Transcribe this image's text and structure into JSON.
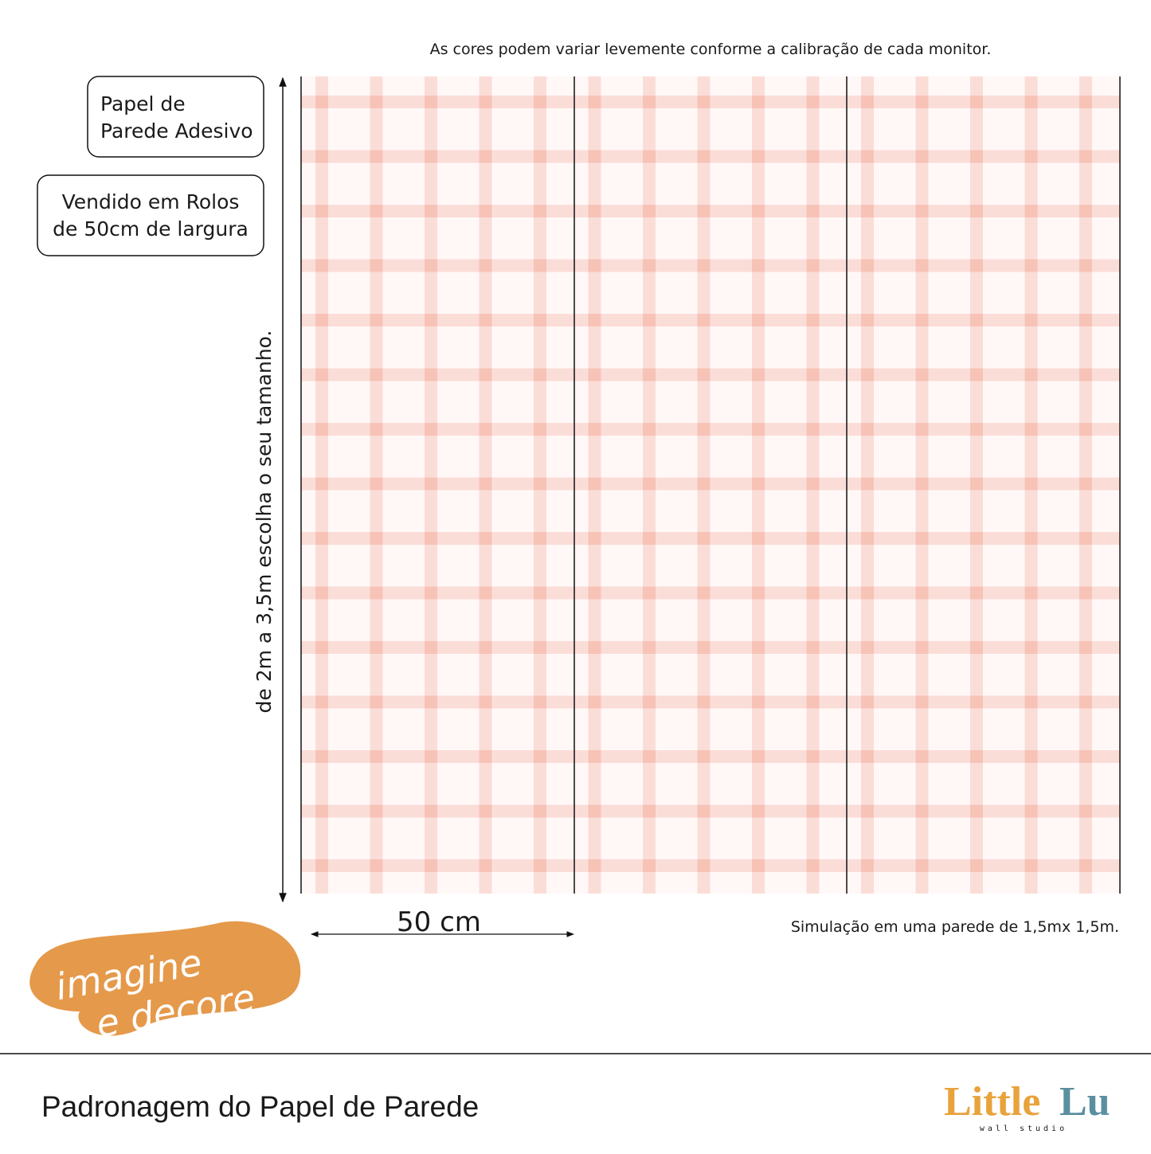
{
  "note": "As cores podem variar levemente conforme a calibração de cada monitor.",
  "badges": [
    {
      "lines": [
        "Papel de",
        "Parede Adesivo"
      ]
    },
    {
      "lines": [
        "Vendido em Rolos",
        "de 50cm de largura"
      ]
    }
  ],
  "height_label": "de 2m a 3,5m escolha o seu tamanho.",
  "width_label": "50 cm",
  "simulation": "Simulação em uma parede de 1,5mx 1,5m.",
  "brand_stamp": {
    "lines": [
      "imagine",
      "e decore"
    ]
  },
  "footer": {
    "title": "Padronagem do Papel de Parede",
    "logo": {
      "first": "Little",
      "second": "Lu",
      "tagline": "wall studio"
    }
  }
}
